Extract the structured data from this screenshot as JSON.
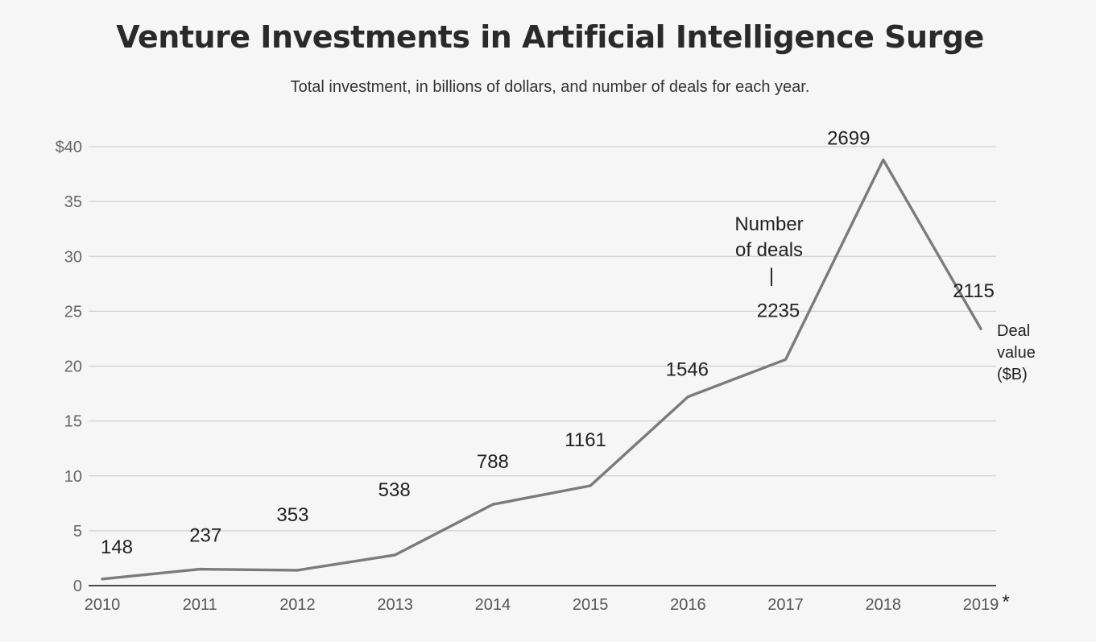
{
  "chart_data": {
    "type": "line",
    "title": "Venture Investments in Artificial Intelligence Surge",
    "subtitle": "Total investment, in billions of dollars, and number of deals for each year.",
    "categories": [
      "2010",
      "2011",
      "2012",
      "2013",
      "2014",
      "2015",
      "2016",
      "2017",
      "2018",
      "2019"
    ],
    "x_tick_labels": [
      "2010",
      "2011",
      "2012",
      "2013",
      "2014",
      "2015",
      "2016",
      "2017",
      "2018",
      "2019"
    ],
    "x_footnote_marker": "*",
    "series": [
      {
        "name": "Deal value ($B)",
        "values": [
          0.6,
          1.5,
          1.4,
          2.8,
          7.4,
          9.1,
          17.2,
          20.6,
          38.8,
          23.4
        ]
      }
    ],
    "deal_counts": [
      "148",
      "237",
      "353",
      "538",
      "788",
      "1161",
      "1546",
      "2235",
      "2699",
      "2115"
    ],
    "y_tick_labels": [
      "0",
      "5",
      "10",
      "15",
      "20",
      "25",
      "30",
      "35",
      "$40"
    ],
    "ylim": [
      0,
      40
    ],
    "grid": true,
    "annotations": {
      "deals_label_line1": "Number",
      "deals_label_line2": "of deals",
      "deals_marker": "|",
      "value_label_line1": "Deal",
      "value_label_line2": "value",
      "value_label_line3": "($B)"
    },
    "line_color": "#7b7b7b"
  }
}
